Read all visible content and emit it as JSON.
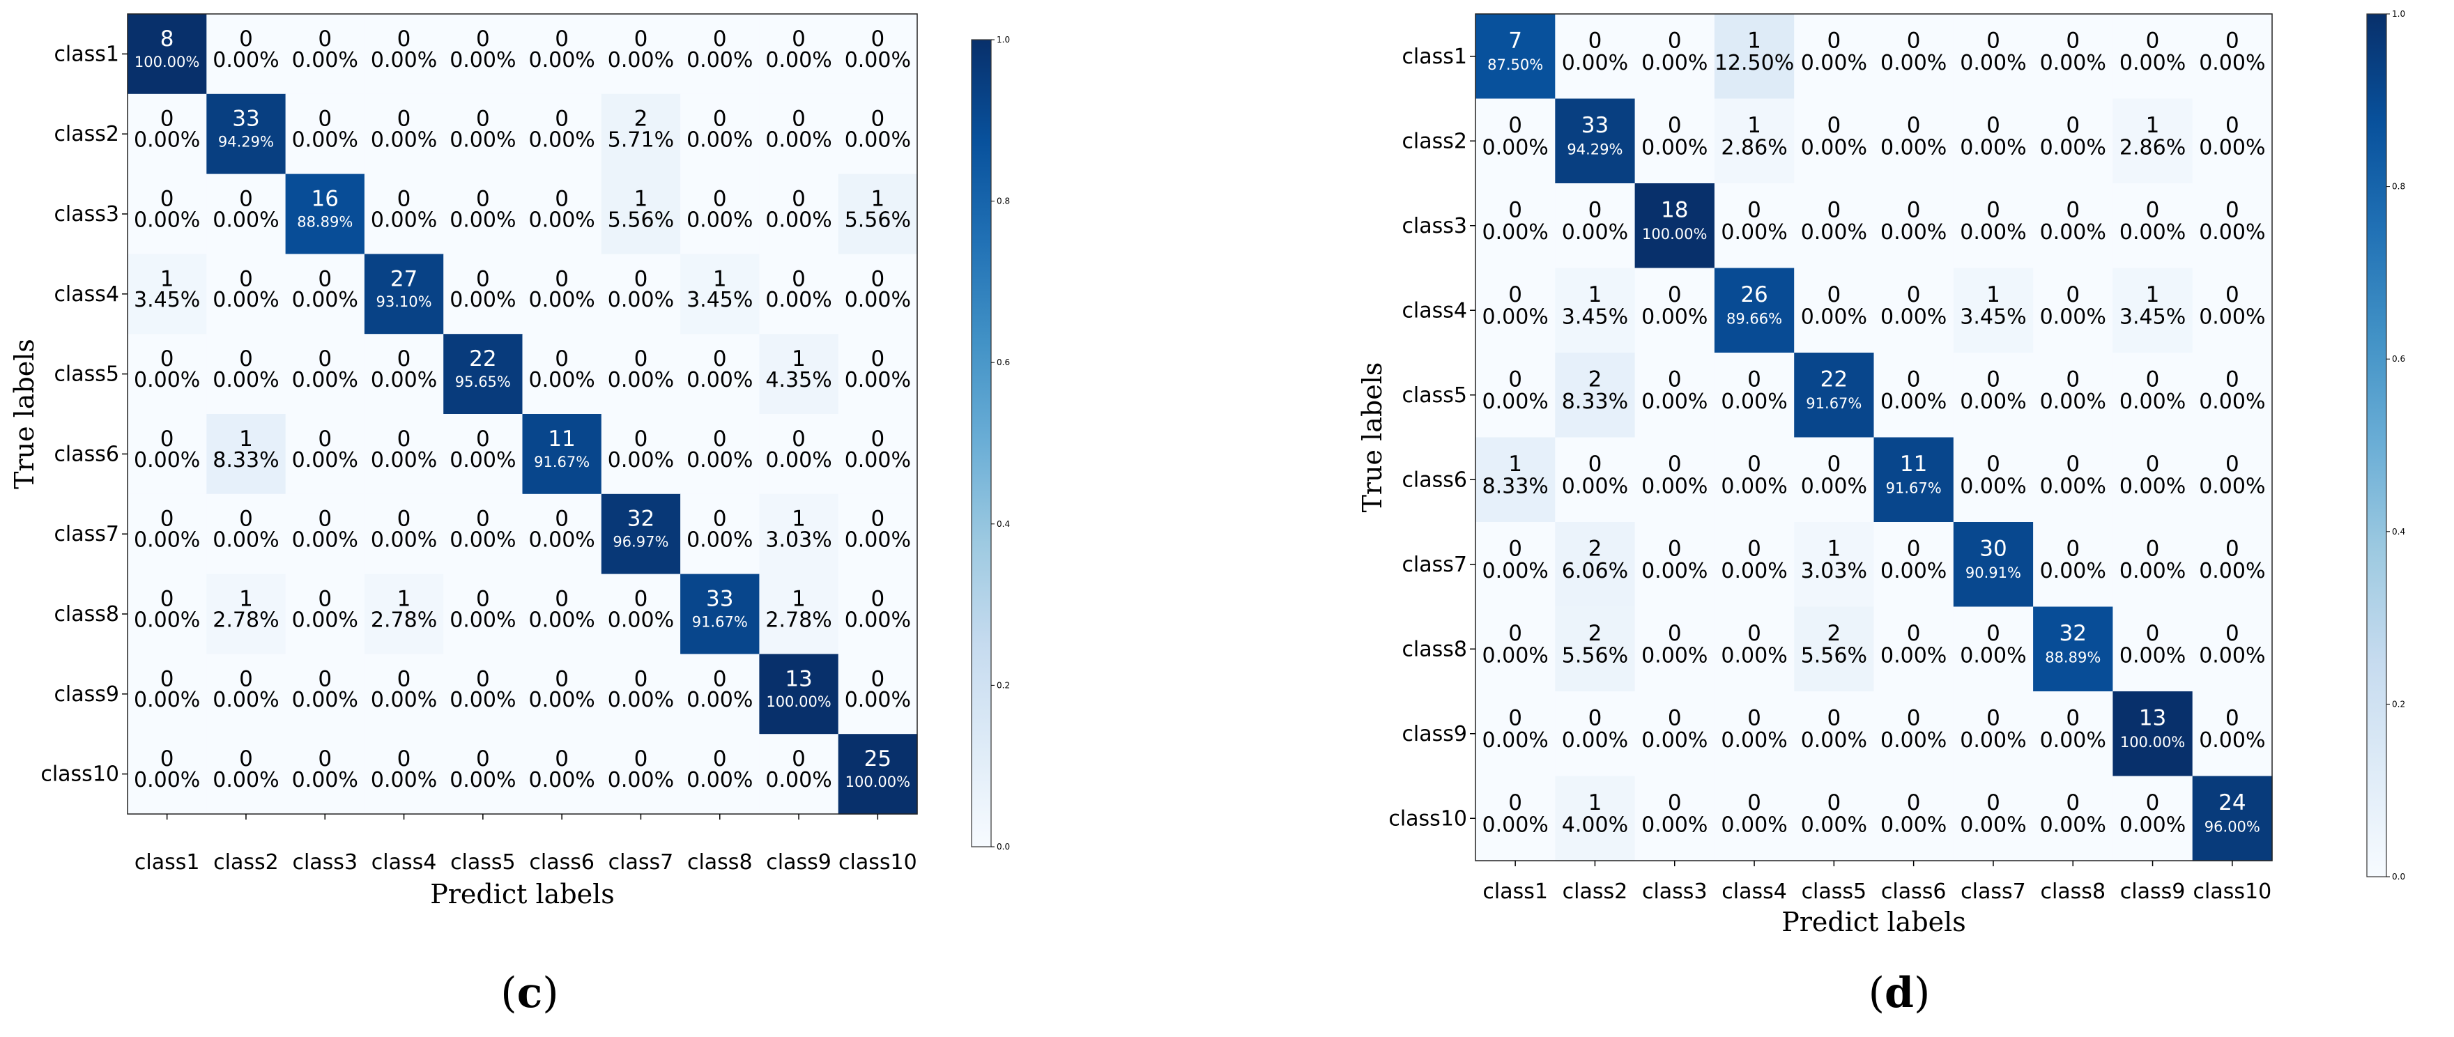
{
  "colors": {
    "low": "#f7fbff",
    "high": "#08306b"
  },
  "chart_data": [
    {
      "type": "heatmap",
      "caption_letter": "c",
      "xlabel": "Predict labels",
      "ylabel": "True labels",
      "x_categories": [
        "class1",
        "class2",
        "class3",
        "class4",
        "class5",
        "class6",
        "class7",
        "class8",
        "class9",
        "class10"
      ],
      "y_categories": [
        "class1",
        "class2",
        "class3",
        "class4",
        "class5",
        "class6",
        "class7",
        "class8",
        "class9",
        "class10"
      ],
      "colorbar_ticks": [
        "0.0",
        "0.2",
        "0.4",
        "0.6",
        "0.8",
        "1.0"
      ],
      "colorbar_range": [
        0,
        1
      ],
      "counts": [
        [
          8,
          0,
          0,
          0,
          0,
          0,
          0,
          0,
          0,
          0
        ],
        [
          0,
          33,
          0,
          0,
          0,
          0,
          2,
          0,
          0,
          0
        ],
        [
          0,
          0,
          16,
          0,
          0,
          0,
          1,
          0,
          0,
          1
        ],
        [
          1,
          0,
          0,
          27,
          0,
          0,
          0,
          1,
          0,
          0
        ],
        [
          0,
          0,
          0,
          0,
          22,
          0,
          0,
          0,
          1,
          0
        ],
        [
          0,
          1,
          0,
          0,
          0,
          11,
          0,
          0,
          0,
          0
        ],
        [
          0,
          0,
          0,
          0,
          0,
          0,
          32,
          0,
          1,
          0
        ],
        [
          0,
          1,
          0,
          1,
          0,
          0,
          0,
          33,
          1,
          0
        ],
        [
          0,
          0,
          0,
          0,
          0,
          0,
          0,
          0,
          13,
          0
        ],
        [
          0,
          0,
          0,
          0,
          0,
          0,
          0,
          0,
          0,
          25
        ]
      ],
      "percents": [
        [
          "100.00%",
          "0.00%",
          "0.00%",
          "0.00%",
          "0.00%",
          "0.00%",
          "0.00%",
          "0.00%",
          "0.00%",
          "0.00%"
        ],
        [
          "0.00%",
          "94.29%",
          "0.00%",
          "0.00%",
          "0.00%",
          "0.00%",
          "5.71%",
          "0.00%",
          "0.00%",
          "0.00%"
        ],
        [
          "0.00%",
          "0.00%",
          "88.89%",
          "0.00%",
          "0.00%",
          "0.00%",
          "5.56%",
          "0.00%",
          "0.00%",
          "5.56%"
        ],
        [
          "3.45%",
          "0.00%",
          "0.00%",
          "93.10%",
          "0.00%",
          "0.00%",
          "0.00%",
          "3.45%",
          "0.00%",
          "0.00%"
        ],
        [
          "0.00%",
          "0.00%",
          "0.00%",
          "0.00%",
          "95.65%",
          "0.00%",
          "0.00%",
          "0.00%",
          "4.35%",
          "0.00%"
        ],
        [
          "0.00%",
          "8.33%",
          "0.00%",
          "0.00%",
          "0.00%",
          "91.67%",
          "0.00%",
          "0.00%",
          "0.00%",
          "0.00%"
        ],
        [
          "0.00%",
          "0.00%",
          "0.00%",
          "0.00%",
          "0.00%",
          "0.00%",
          "96.97%",
          "0.00%",
          "3.03%",
          "0.00%"
        ],
        [
          "0.00%",
          "2.78%",
          "0.00%",
          "2.78%",
          "0.00%",
          "0.00%",
          "0.00%",
          "91.67%",
          "2.78%",
          "0.00%"
        ],
        [
          "0.00%",
          "0.00%",
          "0.00%",
          "0.00%",
          "0.00%",
          "0.00%",
          "0.00%",
          "0.00%",
          "100.00%",
          "0.00%"
        ],
        [
          "0.00%",
          "0.00%",
          "0.00%",
          "0.00%",
          "0.00%",
          "0.00%",
          "0.00%",
          "0.00%",
          "0.00%",
          "100.00%"
        ]
      ]
    },
    {
      "type": "heatmap",
      "caption_letter": "d",
      "xlabel": "Predict labels",
      "ylabel": "True labels",
      "x_categories": [
        "class1",
        "class2",
        "class3",
        "class4",
        "class5",
        "class6",
        "class7",
        "class8",
        "class9",
        "class10"
      ],
      "y_categories": [
        "class1",
        "class2",
        "class3",
        "class4",
        "class5",
        "class6",
        "class7",
        "class8",
        "class9",
        "class10"
      ],
      "colorbar_ticks": [
        "0.0",
        "0.2",
        "0.4",
        "0.6",
        "0.8",
        "1.0"
      ],
      "colorbar_range": [
        0,
        1
      ],
      "counts": [
        [
          7,
          0,
          0,
          1,
          0,
          0,
          0,
          0,
          0,
          0
        ],
        [
          0,
          33,
          0,
          1,
          0,
          0,
          0,
          0,
          1,
          0
        ],
        [
          0,
          0,
          18,
          0,
          0,
          0,
          0,
          0,
          0,
          0
        ],
        [
          0,
          1,
          0,
          26,
          0,
          0,
          1,
          0,
          1,
          0
        ],
        [
          0,
          2,
          0,
          0,
          22,
          0,
          0,
          0,
          0,
          0
        ],
        [
          1,
          0,
          0,
          0,
          0,
          11,
          0,
          0,
          0,
          0
        ],
        [
          0,
          2,
          0,
          0,
          1,
          0,
          30,
          0,
          0,
          0
        ],
        [
          0,
          2,
          0,
          0,
          2,
          0,
          0,
          32,
          0,
          0
        ],
        [
          0,
          0,
          0,
          0,
          0,
          0,
          0,
          0,
          13,
          0
        ],
        [
          0,
          1,
          0,
          0,
          0,
          0,
          0,
          0,
          0,
          24
        ]
      ],
      "percents": [
        [
          "87.50%",
          "0.00%",
          "0.00%",
          "12.50%",
          "0.00%",
          "0.00%",
          "0.00%",
          "0.00%",
          "0.00%",
          "0.00%"
        ],
        [
          "0.00%",
          "94.29%",
          "0.00%",
          "2.86%",
          "0.00%",
          "0.00%",
          "0.00%",
          "0.00%",
          "2.86%",
          "0.00%"
        ],
        [
          "0.00%",
          "0.00%",
          "100.00%",
          "0.00%",
          "0.00%",
          "0.00%",
          "0.00%",
          "0.00%",
          "0.00%",
          "0.00%"
        ],
        [
          "0.00%",
          "3.45%",
          "0.00%",
          "89.66%",
          "0.00%",
          "0.00%",
          "3.45%",
          "0.00%",
          "3.45%",
          "0.00%"
        ],
        [
          "0.00%",
          "8.33%",
          "0.00%",
          "0.00%",
          "91.67%",
          "0.00%",
          "0.00%",
          "0.00%",
          "0.00%",
          "0.00%"
        ],
        [
          "8.33%",
          "0.00%",
          "0.00%",
          "0.00%",
          "0.00%",
          "91.67%",
          "0.00%",
          "0.00%",
          "0.00%",
          "0.00%"
        ],
        [
          "0.00%",
          "6.06%",
          "0.00%",
          "0.00%",
          "3.03%",
          "0.00%",
          "90.91%",
          "0.00%",
          "0.00%",
          "0.00%"
        ],
        [
          "0.00%",
          "5.56%",
          "0.00%",
          "0.00%",
          "5.56%",
          "0.00%",
          "0.00%",
          "88.89%",
          "0.00%",
          "0.00%"
        ],
        [
          "0.00%",
          "0.00%",
          "0.00%",
          "0.00%",
          "0.00%",
          "0.00%",
          "0.00%",
          "0.00%",
          "100.00%",
          "0.00%"
        ],
        [
          "0.00%",
          "4.00%",
          "0.00%",
          "0.00%",
          "0.00%",
          "0.00%",
          "0.00%",
          "0.00%",
          "0.00%",
          "96.00%"
        ]
      ]
    }
  ]
}
